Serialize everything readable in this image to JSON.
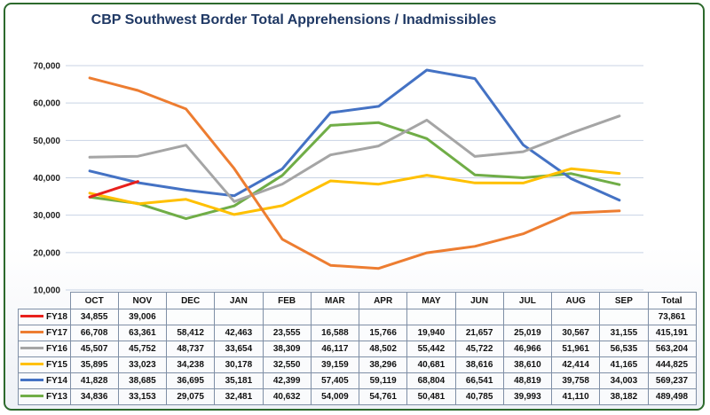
{
  "chart_data": {
    "type": "line",
    "title": "CBP Southwest Border Total Apprehensions / Inadmissibles",
    "categories": [
      "OCT",
      "NOV",
      "DEC",
      "JAN",
      "FEB",
      "MAR",
      "APR",
      "MAY",
      "JUN",
      "JUL",
      "AUG",
      "SEP"
    ],
    "total_header": "Total",
    "ylim": [
      10000,
      70000
    ],
    "yticks": [
      "10,000",
      "20,000",
      "30,000",
      "40,000",
      "50,000",
      "60,000",
      "70,000"
    ],
    "grid": true,
    "legend_placement": "data-table",
    "series": [
      {
        "name": "FY18",
        "color": "#e8201c",
        "values": [
          34855,
          39006,
          null,
          null,
          null,
          null,
          null,
          null,
          null,
          null,
          null,
          null
        ],
        "labels": [
          "34,855",
          "39,006",
          "",
          "",
          "",
          "",
          "",
          "",
          "",
          "",
          "",
          ""
        ],
        "total": "73,861"
      },
      {
        "name": "FY17",
        "color": "#ed7d31",
        "values": [
          66708,
          63361,
          58412,
          42463,
          23555,
          16588,
          15766,
          19940,
          21657,
          25019,
          30567,
          31155
        ],
        "labels": [
          "66,708",
          "63,361",
          "58,412",
          "42,463",
          "23,555",
          "16,588",
          "15,766",
          "19,940",
          "21,657",
          "25,019",
          "30,567",
          "31,155"
        ],
        "total": "415,191"
      },
      {
        "name": "FY16",
        "color": "#a5a5a5",
        "values": [
          45507,
          45752,
          48737,
          33654,
          38309,
          46117,
          48502,
          55442,
          45722,
          46966,
          51961,
          56535
        ],
        "labels": [
          "45,507",
          "45,752",
          "48,737",
          "33,654",
          "38,309",
          "46,117",
          "48,502",
          "55,442",
          "45,722",
          "46,966",
          "51,961",
          "56,535"
        ],
        "total": "563,204"
      },
      {
        "name": "FY15",
        "color": "#ffc000",
        "values": [
          35895,
          33023,
          34238,
          30178,
          32550,
          39159,
          38296,
          40681,
          38616,
          38610,
          42414,
          41165
        ],
        "labels": [
          "35,895",
          "33,023",
          "34,238",
          "30,178",
          "32,550",
          "39,159",
          "38,296",
          "40,681",
          "38,616",
          "38,610",
          "42,414",
          "41,165"
        ],
        "total": "444,825"
      },
      {
        "name": "FY14",
        "color": "#4472c4",
        "values": [
          41828,
          38685,
          36695,
          35181,
          42399,
          57405,
          59119,
          68804,
          66541,
          48819,
          39758,
          34003
        ],
        "labels": [
          "41,828",
          "38,685",
          "36,695",
          "35,181",
          "42,399",
          "57,405",
          "59,119",
          "68,804",
          "66,541",
          "48,819",
          "39,758",
          "34,003"
        ],
        "total": "569,237"
      },
      {
        "name": "FY13",
        "color": "#70ad47",
        "values": [
          34836,
          33153,
          29075,
          32481,
          40632,
          54009,
          54761,
          50481,
          40785,
          39993,
          41110,
          38182
        ],
        "labels": [
          "34,836",
          "33,153",
          "29,075",
          "32,481",
          "40,632",
          "54,009",
          "54,761",
          "50,481",
          "40,785",
          "39,993",
          "41,110",
          "38,182"
        ],
        "total": "489,498"
      }
    ]
  }
}
